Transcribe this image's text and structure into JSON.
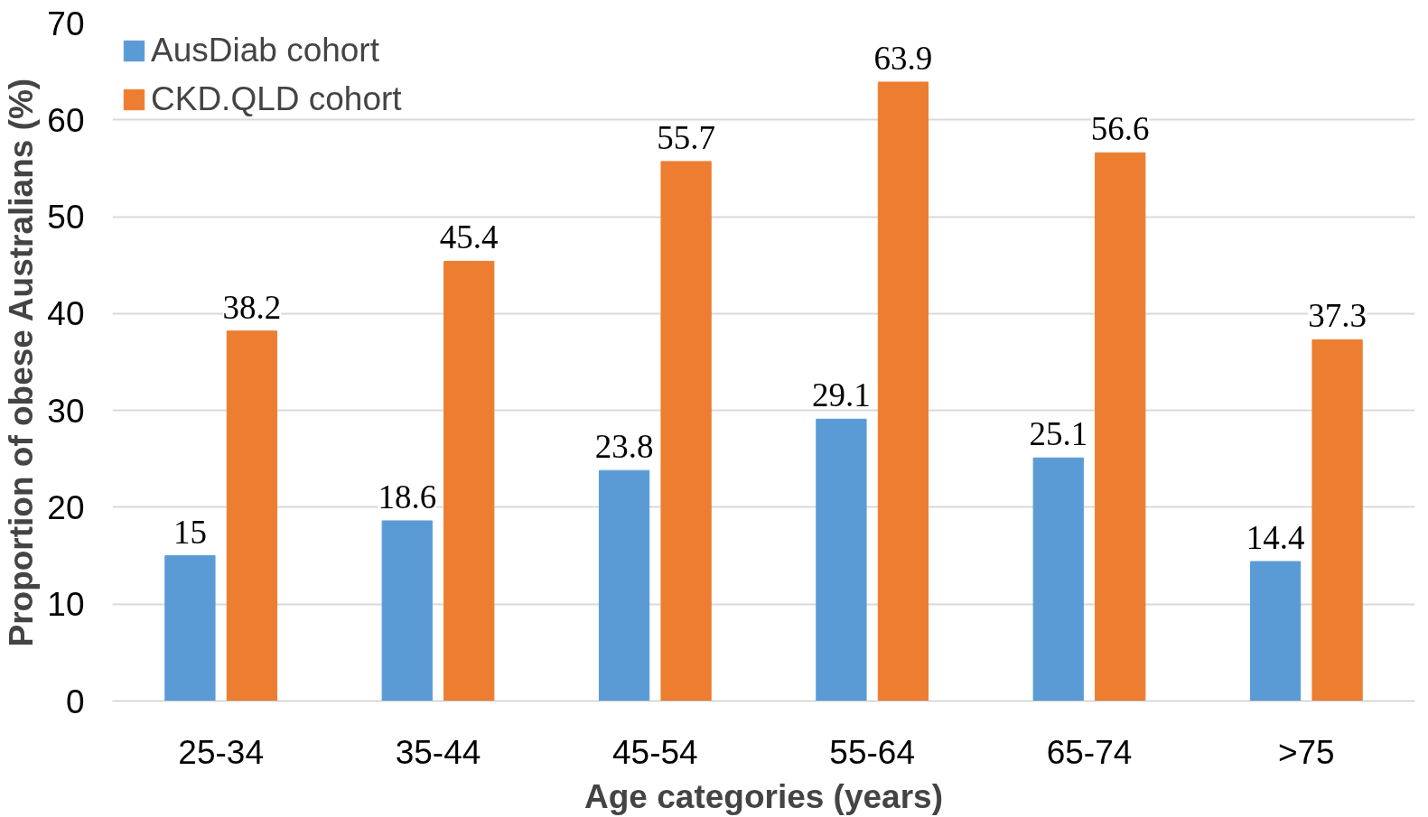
{
  "chart_data": {
    "type": "bar",
    "xlabel": "Age categories (years)",
    "ylabel": "Proportion of obese Australians (%)",
    "categories": [
      "25-34",
      "35-44",
      "45-54",
      "55-64",
      "65-74",
      ">75"
    ],
    "series": [
      {
        "name": "AusDiab cohort",
        "color": "#5b9bd5",
        "values": [
          15,
          18.6,
          23.8,
          29.1,
          25.1,
          14.4
        ]
      },
      {
        "name": "CKD.QLD cohort",
        "color": "#ed7d31",
        "values": [
          38.2,
          45.4,
          55.7,
          63.9,
          56.6,
          37.3
        ]
      }
    ],
    "ylim": [
      0,
      70
    ],
    "yticks": [
      0,
      10,
      20,
      30,
      40,
      50,
      60,
      70
    ],
    "grid": "y",
    "legend": "top left",
    "data_labels": true
  }
}
